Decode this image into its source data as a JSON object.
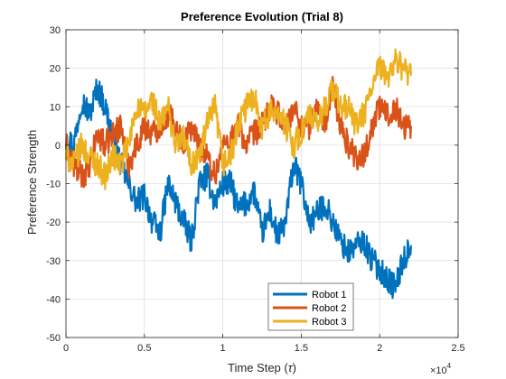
{
  "chart_data": {
    "type": "line",
    "title": "Preference Evolution (Trial 8)",
    "xlabel_text": "Time Step (",
    "xlabel_symbol": "τ",
    "xlabel_close": ")",
    "ylabel": "Preference Strength",
    "xlim": [
      0,
      2.5
    ],
    "ylim": [
      -50,
      30
    ],
    "x_ticks": [
      "0",
      "0.5",
      "1",
      "1.5",
      "2",
      "2.5"
    ],
    "y_ticks": [
      "30",
      "20",
      "10",
      "0",
      "-10",
      "-20",
      "-30",
      "-40",
      "-50"
    ],
    "x_exponent_base": "×10",
    "x_exponent_power": "4",
    "grid": true,
    "legend_position": "bottom-center",
    "series": [
      {
        "name": "Robot 1",
        "color": "#0072BD",
        "x": [
          0,
          0.05,
          0.1,
          0.15,
          0.2,
          0.25,
          0.3,
          0.35,
          0.4,
          0.45,
          0.5,
          0.55,
          0.6,
          0.65,
          0.7,
          0.75,
          0.8,
          0.85,
          0.9,
          0.95,
          1.0,
          1.05,
          1.1,
          1.15,
          1.2,
          1.25,
          1.3,
          1.35,
          1.4,
          1.45,
          1.5,
          1.55,
          1.6,
          1.65,
          1.7,
          1.75,
          1.8,
          1.85,
          1.9,
          1.95,
          2.0,
          2.05,
          2.1,
          2.15,
          2.2
        ],
        "y": [
          2,
          0,
          12,
          8,
          15,
          10,
          2,
          -5,
          -10,
          -15,
          -13,
          -20,
          -23,
          -10,
          -15,
          -20,
          -25,
          -10,
          -8,
          -15,
          -10,
          -10,
          -17,
          -15,
          -12,
          -23,
          -17,
          -24,
          -20,
          -5,
          -10,
          -20,
          -18,
          -15,
          -20,
          -25,
          -28,
          -26,
          -25,
          -30,
          -32,
          -35,
          -37,
          -30,
          -26
        ]
      },
      {
        "name": "Robot 2",
        "color": "#D95319",
        "x": [
          0,
          0.05,
          0.1,
          0.15,
          0.2,
          0.25,
          0.3,
          0.35,
          0.4,
          0.45,
          0.5,
          0.55,
          0.6,
          0.65,
          0.7,
          0.75,
          0.8,
          0.85,
          0.9,
          0.95,
          1.0,
          1.05,
          1.1,
          1.15,
          1.2,
          1.25,
          1.3,
          1.35,
          1.4,
          1.45,
          1.5,
          1.55,
          1.6,
          1.65,
          1.7,
          1.75,
          1.8,
          1.85,
          1.9,
          1.95,
          2.0,
          2.05,
          2.1,
          2.15,
          2.2
        ],
        "y": [
          0,
          -5,
          -8,
          -6,
          3,
          0,
          3,
          5,
          -5,
          0,
          5,
          3,
          5,
          8,
          5,
          0,
          5,
          0,
          -3,
          -8,
          0,
          2,
          5,
          0,
          3,
          5,
          10,
          8,
          5,
          10,
          5,
          5,
          10,
          5,
          15,
          5,
          0,
          -3,
          -3,
          5,
          10,
          8,
          10,
          5,
          5
        ]
      },
      {
        "name": "Robot 3",
        "color": "#EDB120",
        "x": [
          0,
          0.05,
          0.1,
          0.15,
          0.2,
          0.25,
          0.3,
          0.35,
          0.4,
          0.45,
          0.5,
          0.55,
          0.6,
          0.65,
          0.7,
          0.75,
          0.8,
          0.85,
          0.9,
          0.95,
          1.0,
          1.05,
          1.1,
          1.15,
          1.2,
          1.25,
          1.3,
          1.35,
          1.4,
          1.45,
          1.5,
          1.55,
          1.6,
          1.65,
          1.7,
          1.75,
          1.8,
          1.85,
          1.9,
          1.95,
          2.0,
          2.05,
          2.1,
          2.15,
          2.2
        ],
        "y": [
          -3,
          -5,
          0,
          -3,
          -5,
          -8,
          -3,
          -5,
          0,
          10,
          8,
          12,
          5,
          10,
          0,
          2,
          -5,
          -3,
          5,
          10,
          -5,
          -3,
          5,
          10,
          13,
          5,
          8,
          10,
          5,
          0,
          3,
          8,
          5,
          10,
          15,
          10,
          10,
          5,
          8,
          15,
          20,
          18,
          22,
          20,
          18
        ]
      }
    ]
  }
}
